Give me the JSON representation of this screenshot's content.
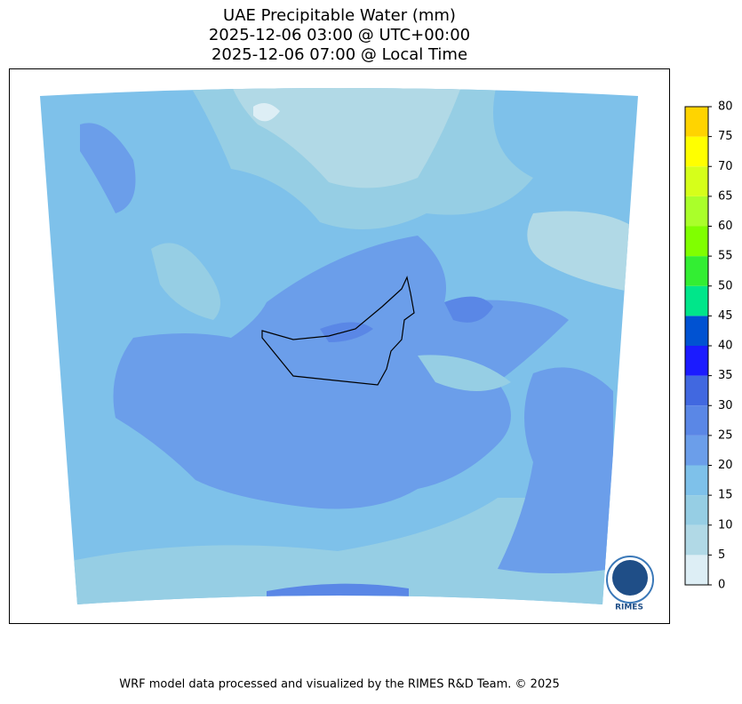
{
  "title": [
    "UAE Precipitable Water (mm)",
    "2025-12-06 03:00 @ UTC+00:00",
    "2025-12-06 07:00 @ Local Time"
  ],
  "colorbar": {
    "ticks": [
      0,
      5,
      10,
      15,
      20,
      25,
      30,
      35,
      40,
      45,
      50,
      55,
      60,
      65,
      70,
      75,
      80
    ],
    "colors": [
      "#ddeef5",
      "#b1d9e6",
      "#96cee4",
      "#7ec1ea",
      "#6b9eea",
      "#5a87e6",
      "#4168e0",
      "#1b1bff",
      "#0052d2",
      "#00e68a",
      "#33ee33",
      "#80ff00",
      "#aaff2a",
      "#d6ff1a",
      "#ffff00",
      "#ffd400"
    ]
  },
  "logo": "RIMES",
  "footer": "WRF model data processed and visualized by the RIMES R&D Team. © 2025"
}
